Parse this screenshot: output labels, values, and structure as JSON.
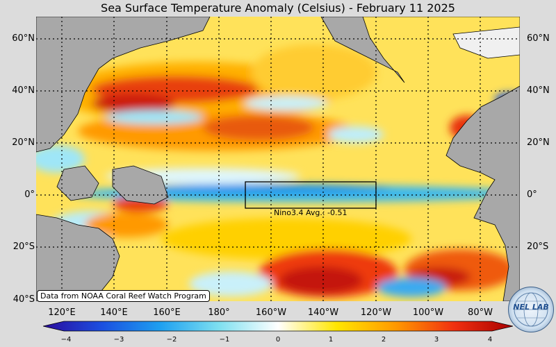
{
  "title": "Sea Surface Temperature Anomaly (Celsius) - February 11 2025",
  "latitude_labels": [
    "60°N",
    "40°N",
    "20°N",
    "0°",
    "20°S",
    "40°S"
  ],
  "longitude_labels": [
    "120°E",
    "140°E",
    "160°E",
    "180°",
    "160°W",
    "140°W",
    "120°W",
    "100°W",
    "80°W"
  ],
  "box_annotation": "Nino3.4 Avg.: -0.51",
  "credit": "Data from NOAA Coral Reef Watch Program",
  "colorbar": {
    "ticks": [
      "−4",
      "−3",
      "−2",
      "−1",
      "0",
      "1",
      "2",
      "3",
      "4"
    ],
    "colors": [
      "#2a0a9c",
      "#1b4fe0",
      "#1ea0f0",
      "#7fe0f0",
      "#ffffff",
      "#ffe600",
      "#ff9900",
      "#f03010",
      "#a80000"
    ]
  },
  "colors": {
    "land": "#a8a8a8",
    "warm": "#ffb400",
    "hot": "#e81c0c",
    "cool": "#5ad2f5"
  },
  "logo": {
    "label": "NEL LAB"
  }
}
